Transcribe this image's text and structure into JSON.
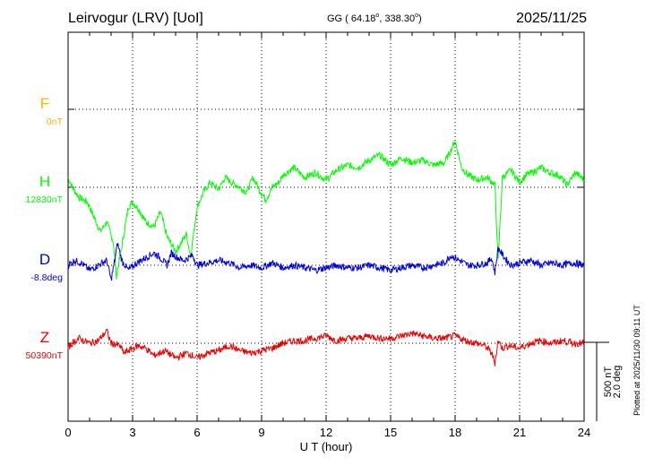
{
  "header": {
    "station": "Leirvogur (LRV)  [UoI]",
    "coords_prefix": "GG ( 64.18",
    "coords_sep": ", 338.30",
    "coords_suffix": ")",
    "deg_symbol": "o",
    "date": "2025/11/25"
  },
  "colors": {
    "F": "#ffb300",
    "H": "#00ff00",
    "D": "#0000dd",
    "Z": "#ee0000",
    "axis": "#000000"
  },
  "chart_data": {
    "type": "line",
    "xlabel": "U T (hour)",
    "xlim": [
      0,
      24
    ],
    "x_ticks": [
      "0",
      "3",
      "6",
      "9",
      "12",
      "15",
      "18",
      "21",
      "24"
    ],
    "x_tick_values": [
      0,
      3,
      6,
      9,
      12,
      15,
      18,
      21,
      24
    ],
    "channels": [
      {
        "name": "F",
        "baseline": "0nT",
        "points": []
      },
      {
        "name": "H",
        "baseline": "12830nT",
        "points": [
          [
            0.0,
            20
          ],
          [
            0.2,
            0
          ],
          [
            0.5,
            -20
          ],
          [
            0.9,
            -30
          ],
          [
            1.2,
            -60
          ],
          [
            1.5,
            -90
          ],
          [
            1.8,
            -70
          ],
          [
            2.1,
            -110
          ],
          [
            2.25,
            -180
          ],
          [
            2.5,
            -120
          ],
          [
            2.8,
            -40
          ],
          [
            3.0,
            -30
          ],
          [
            3.3,
            -45
          ],
          [
            3.6,
            -70
          ],
          [
            4.0,
            -80
          ],
          [
            4.3,
            -50
          ],
          [
            4.6,
            -100
          ],
          [
            5.0,
            -130
          ],
          [
            5.3,
            -110
          ],
          [
            5.5,
            -95
          ],
          [
            5.7,
            -140
          ],
          [
            6.0,
            -40
          ],
          [
            6.3,
            -10
          ],
          [
            6.6,
            10
          ],
          [
            7.0,
            -5
          ],
          [
            7.3,
            20
          ],
          [
            7.6,
            10
          ],
          [
            8.0,
            0
          ],
          [
            8.3,
            -10
          ],
          [
            8.6,
            20
          ],
          [
            8.9,
            -5
          ],
          [
            9.2,
            -25
          ],
          [
            9.5,
            0
          ],
          [
            9.8,
            10
          ],
          [
            10.0,
            25
          ],
          [
            10.5,
            40
          ],
          [
            11.0,
            20
          ],
          [
            11.5,
            30
          ],
          [
            12.0,
            15
          ],
          [
            12.5,
            35
          ],
          [
            13.0,
            45
          ],
          [
            13.5,
            40
          ],
          [
            14.0,
            55
          ],
          [
            14.5,
            65
          ],
          [
            15.0,
            45
          ],
          [
            15.5,
            60
          ],
          [
            16.0,
            50
          ],
          [
            16.5,
            55
          ],
          [
            17.0,
            45
          ],
          [
            17.5,
            50
          ],
          [
            17.8,
            75
          ],
          [
            18.0,
            95
          ],
          [
            18.3,
            40
          ],
          [
            18.6,
            25
          ],
          [
            19.0,
            15
          ],
          [
            19.5,
            20
          ],
          [
            19.85,
            5
          ],
          [
            20.0,
            -150
          ],
          [
            20.2,
            20
          ],
          [
            20.6,
            35
          ],
          [
            21.0,
            10
          ],
          [
            21.3,
            25
          ],
          [
            21.6,
            30
          ],
          [
            22.0,
            40
          ],
          [
            22.4,
            30
          ],
          [
            22.8,
            25
          ],
          [
            23.2,
            5
          ],
          [
            23.6,
            30
          ],
          [
            24.0,
            15
          ]
        ]
      },
      {
        "name": "D",
        "baseline": "-8.8deg",
        "points": [
          [
            0.0,
            0
          ],
          [
            0.3,
            10
          ],
          [
            0.6,
            5
          ],
          [
            1.0,
            -10
          ],
          [
            1.4,
            0
          ],
          [
            1.8,
            10
          ],
          [
            2.0,
            -30
          ],
          [
            2.15,
            5
          ],
          [
            2.3,
            45
          ],
          [
            2.5,
            10
          ],
          [
            2.8,
            -10
          ],
          [
            3.2,
            5
          ],
          [
            3.6,
            15
          ],
          [
            4.0,
            25
          ],
          [
            4.3,
            15
          ],
          [
            4.6,
            0
          ],
          [
            4.8,
            25
          ],
          [
            5.1,
            15
          ],
          [
            5.4,
            10
          ],
          [
            5.8,
            20
          ],
          [
            6.0,
            0
          ],
          [
            6.5,
            5
          ],
          [
            7.0,
            10
          ],
          [
            7.5,
            5
          ],
          [
            8.0,
            -5
          ],
          [
            8.5,
            0
          ],
          [
            9.0,
            -5
          ],
          [
            9.5,
            5
          ],
          [
            10.0,
            -5
          ],
          [
            10.5,
            0
          ],
          [
            11.0,
            -5
          ],
          [
            11.5,
            -10
          ],
          [
            12.0,
            -5
          ],
          [
            12.5,
            0
          ],
          [
            13.0,
            -5
          ],
          [
            13.5,
            -5
          ],
          [
            14.0,
            0
          ],
          [
            14.5,
            -5
          ],
          [
            15.0,
            -10
          ],
          [
            15.5,
            -5
          ],
          [
            16.0,
            0
          ],
          [
            16.5,
            -5
          ],
          [
            17.0,
            0
          ],
          [
            17.5,
            5
          ],
          [
            17.8,
            20
          ],
          [
            18.2,
            10
          ],
          [
            18.6,
            0
          ],
          [
            19.0,
            0
          ],
          [
            19.5,
            5
          ],
          [
            19.7,
            15
          ],
          [
            19.85,
            -15
          ],
          [
            20.0,
            35
          ],
          [
            20.3,
            15
          ],
          [
            20.6,
            0
          ],
          [
            21.0,
            5
          ],
          [
            21.5,
            10
          ],
          [
            22.0,
            0
          ],
          [
            22.5,
            5
          ],
          [
            23.0,
            0
          ],
          [
            23.5,
            5
          ],
          [
            24.0,
            0
          ]
        ]
      },
      {
        "name": "Z",
        "baseline": "50390nT",
        "points": [
          [
            0.0,
            -10
          ],
          [
            0.2,
            0
          ],
          [
            0.5,
            10
          ],
          [
            1.0,
            0
          ],
          [
            1.4,
            5
          ],
          [
            1.8,
            25
          ],
          [
            2.0,
            0
          ],
          [
            2.4,
            -5
          ],
          [
            2.6,
            -20
          ],
          [
            3.0,
            -10
          ],
          [
            3.3,
            -5
          ],
          [
            3.6,
            -10
          ],
          [
            4.0,
            -25
          ],
          [
            4.5,
            -15
          ],
          [
            5.0,
            -30
          ],
          [
            5.5,
            -20
          ],
          [
            5.8,
            -25
          ],
          [
            6.0,
            -30
          ],
          [
            6.5,
            -20
          ],
          [
            7.0,
            -15
          ],
          [
            7.5,
            -5
          ],
          [
            8.0,
            -15
          ],
          [
            8.5,
            -20
          ],
          [
            9.0,
            -15
          ],
          [
            9.5,
            -10
          ],
          [
            10.0,
            0
          ],
          [
            10.5,
            5
          ],
          [
            11.0,
            5
          ],
          [
            11.5,
            10
          ],
          [
            12.0,
            15
          ],
          [
            12.5,
            5
          ],
          [
            13.0,
            10
          ],
          [
            13.5,
            10
          ],
          [
            14.0,
            15
          ],
          [
            14.5,
            10
          ],
          [
            15.0,
            10
          ],
          [
            15.5,
            15
          ],
          [
            16.0,
            20
          ],
          [
            16.5,
            15
          ],
          [
            17.0,
            10
          ],
          [
            17.5,
            10
          ],
          [
            18.0,
            15
          ],
          [
            18.5,
            5
          ],
          [
            19.0,
            0
          ],
          [
            19.4,
            -5
          ],
          [
            19.7,
            -20
          ],
          [
            19.85,
            -40
          ],
          [
            20.0,
            5
          ],
          [
            20.2,
            -10
          ],
          [
            20.5,
            -5
          ],
          [
            21.0,
            -10
          ],
          [
            21.5,
            0
          ],
          [
            22.0,
            5
          ],
          [
            22.5,
            0
          ],
          [
            23.0,
            5
          ],
          [
            23.5,
            0
          ],
          [
            24.0,
            0
          ]
        ]
      }
    ],
    "scale_bar": {
      "amplitude": "500 nT",
      "angle": "2.0 deg"
    }
  },
  "footer": {
    "plotted_note": "Plotted at 2025/11/30 09:11 UT"
  }
}
